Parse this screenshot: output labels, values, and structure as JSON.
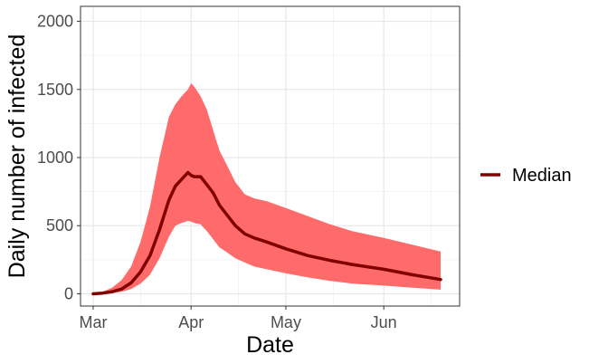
{
  "chart_data": {
    "type": "area",
    "title": "",
    "xlabel": "Date",
    "ylabel": "Daily number of infected",
    "x_ticks": [
      "Mar",
      "Apr",
      "May",
      "Jun"
    ],
    "y_ticks": [
      0,
      500,
      1000,
      1500,
      2000
    ],
    "ylim": [
      -90,
      2110
    ],
    "xlim": [
      "2020-02-26",
      "2020-06-25"
    ],
    "grid": true,
    "legend_position": "right",
    "colors": {
      "band": "#ff6a6a",
      "median": "#800000"
    },
    "series": [
      {
        "name": "Median",
        "x": [
          "2020-03-01",
          "2020-03-04",
          "2020-03-07",
          "2020-03-10",
          "2020-03-13",
          "2020-03-16",
          "2020-03-19",
          "2020-03-22",
          "2020-03-25",
          "2020-03-27",
          "2020-03-29",
          "2020-03-31",
          "2020-04-01",
          "2020-04-02",
          "2020-04-04",
          "2020-04-06",
          "2020-04-08",
          "2020-04-10",
          "2020-04-12",
          "2020-04-15",
          "2020-04-18",
          "2020-04-21",
          "2020-04-25",
          "2020-05-01",
          "2020-05-08",
          "2020-05-15",
          "2020-05-22",
          "2020-06-01",
          "2020-06-10",
          "2020-06-19"
        ],
        "y": [
          0,
          5,
          15,
          35,
          80,
          160,
          280,
          470,
          690,
          790,
          840,
          890,
          870,
          860,
          860,
          800,
          740,
          650,
          590,
          500,
          440,
          410,
          380,
          330,
          280,
          245,
          215,
          180,
          140,
          105
        ]
      },
      {
        "name": "",
        "x": [
          "2020-03-01",
          "2020-03-04",
          "2020-03-07",
          "2020-03-10",
          "2020-03-13",
          "2020-03-16",
          "2020-03-19",
          "2020-03-22",
          "2020-03-25",
          "2020-03-27",
          "2020-03-29",
          "2020-03-31",
          "2020-04-01",
          "2020-04-02",
          "2020-04-04",
          "2020-04-06",
          "2020-04-08",
          "2020-04-10",
          "2020-04-12",
          "2020-04-15",
          "2020-04-18",
          "2020-04-21",
          "2020-04-25",
          "2020-05-01",
          "2020-05-08",
          "2020-05-15",
          "2020-05-22",
          "2020-06-01",
          "2020-06-10",
          "2020-06-19"
        ],
        "y_low": [
          0,
          2,
          6,
          15,
          35,
          75,
          140,
          260,
          420,
          500,
          520,
          535,
          530,
          520,
          510,
          460,
          400,
          340,
          310,
          260,
          230,
          200,
          180,
          150,
          120,
          95,
          75,
          60,
          45,
          30
        ],
        "y_high": [
          5,
          15,
          45,
          100,
          200,
          380,
          640,
          1000,
          1300,
          1390,
          1450,
          1500,
          1545,
          1520,
          1450,
          1350,
          1200,
          1050,
          960,
          820,
          730,
          700,
          680,
          630,
          570,
          510,
          460,
          410,
          360,
          310
        ]
      }
    ]
  }
}
